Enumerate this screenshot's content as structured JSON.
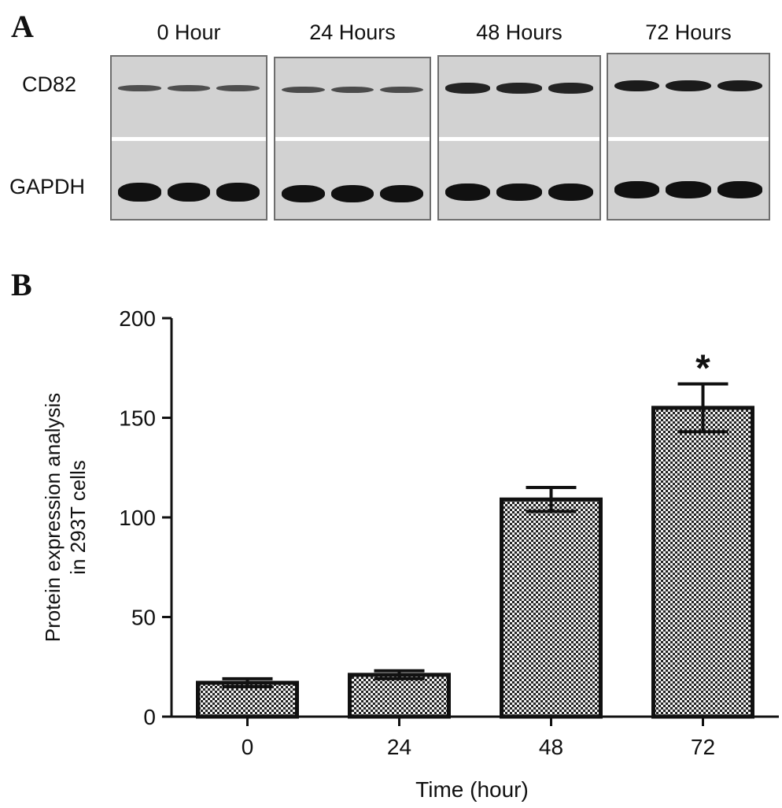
{
  "panel_a": {
    "letter": "A",
    "lanes": [
      "0 Hour",
      "24 Hours",
      "48 Hours",
      "72 Hours"
    ],
    "rows": [
      "CD82",
      "GAPDH"
    ],
    "cd82_band_intensity": [
      0.35,
      0.4,
      0.8,
      0.9
    ],
    "gapdh_band_intensity": [
      0.95,
      0.9,
      0.85,
      0.8
    ]
  },
  "panel_b": {
    "letter": "B",
    "chart_data": {
      "type": "bar",
      "categories": [
        "0",
        "24",
        "48",
        "72"
      ],
      "values": [
        17,
        21,
        109,
        155
      ],
      "errors": [
        2,
        2,
        6,
        12
      ],
      "xlabel": "Time (hour)",
      "ylabel_lines": [
        "Protein expression analysis",
        "in 293T cells"
      ],
      "ylim": [
        0,
        200
      ],
      "yticks": [
        0,
        50,
        100,
        150,
        200
      ],
      "annotations": [
        {
          "category": "72",
          "text": "*"
        }
      ],
      "grid": false,
      "legend": "none",
      "bar_fill_pattern": "checkered"
    }
  }
}
